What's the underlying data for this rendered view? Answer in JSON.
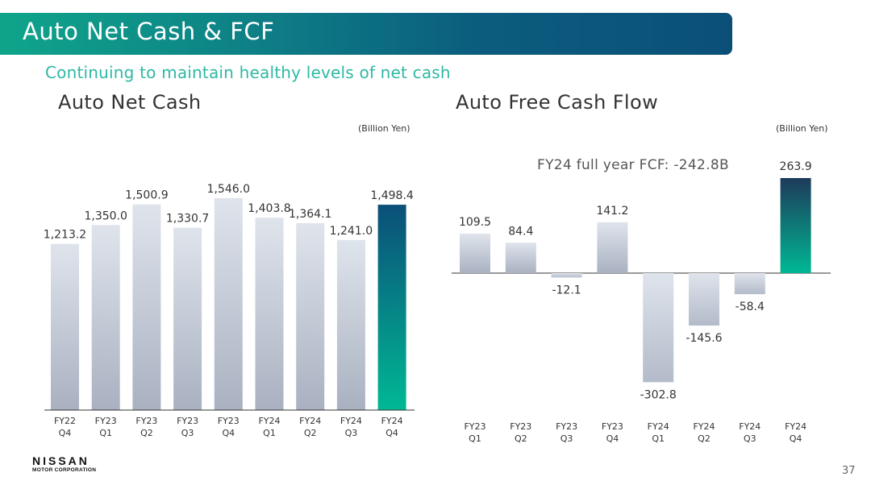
{
  "header": {
    "title": "Auto Net Cash & FCF",
    "subtitle": "Continuing to maintain healthy levels of net cash"
  },
  "footer": {
    "brand": "NISSAN",
    "brand_sub": "MOTOR CORPORATION",
    "page_number": "37"
  },
  "colors": {
    "title_gradient_start": "#0fa58a",
    "title_gradient_end": "#0b4f78",
    "subtitle": "#2db9a4",
    "bar_gray_top": "#dfe4ec",
    "bar_gray_bottom": "#a9b1c1",
    "highlight_netcash_top": "#0b4f78",
    "highlight_fcf_top": "#1d3a5a",
    "highlight_bottom": "#00b894"
  },
  "chart_data": [
    {
      "type": "bar",
      "title": "Auto Net Cash",
      "unit": "(Billion Yen)",
      "categories": [
        [
          "FY22",
          "Q4"
        ],
        [
          "FY23",
          "Q1"
        ],
        [
          "FY23",
          "Q2"
        ],
        [
          "FY23",
          "Q3"
        ],
        [
          "FY23",
          "Q4"
        ],
        [
          "FY24",
          "Q1"
        ],
        [
          "FY24",
          "Q2"
        ],
        [
          "FY24",
          "Q3"
        ],
        [
          "FY24",
          "Q4"
        ]
      ],
      "values": [
        1213.2,
        1350.0,
        1500.9,
        1330.7,
        1546.0,
        1403.8,
        1364.1,
        1241.0,
        1498.4
      ],
      "value_labels": [
        "1,213.2",
        "1,350.0",
        "1,500.9",
        "1,330.7",
        "1,546.0",
        "1,403.8",
        "1,364.1",
        "1,241.0",
        "1,498.4"
      ],
      "highlight_index": 8,
      "ylim": [
        0,
        1546.0
      ]
    },
    {
      "type": "bar",
      "title": "Auto Free Cash Flow",
      "unit": "(Billion Yen)",
      "annotation": "FY24 full year FCF: -242.8B",
      "categories": [
        [
          "FY23",
          "Q1"
        ],
        [
          "FY23",
          "Q2"
        ],
        [
          "FY23",
          "Q3"
        ],
        [
          "FY23",
          "Q4"
        ],
        [
          "FY24",
          "Q1"
        ],
        [
          "FY24",
          "Q2"
        ],
        [
          "FY24",
          "Q3"
        ],
        [
          "FY24",
          "Q4"
        ]
      ],
      "values": [
        109.5,
        84.4,
        -12.1,
        141.2,
        -302.8,
        -145.6,
        -58.4,
        263.9
      ],
      "value_labels": [
        "109.5",
        "84.4",
        "-12.1",
        "141.2",
        "-302.8",
        "-145.6",
        "-58.4",
        "263.9"
      ],
      "highlight_index": 7,
      "ylim": [
        -302.8,
        263.9
      ]
    }
  ]
}
